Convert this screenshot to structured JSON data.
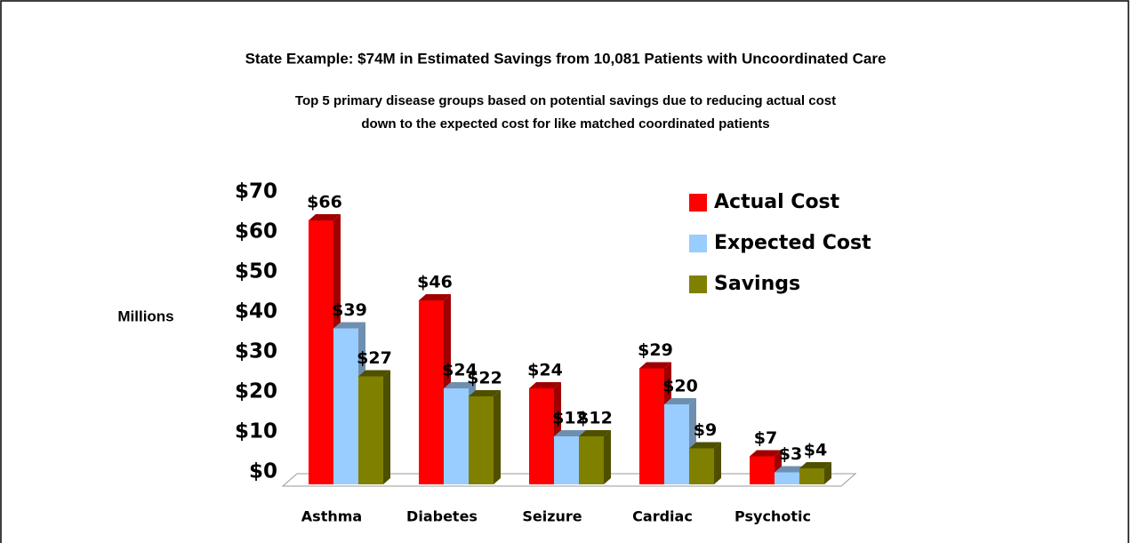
{
  "chart_data": {
    "type": "bar",
    "title": "State Example: $74M in Estimated Savings from 10,081 Patients with Uncoordinated Care",
    "subtitle": [
      "Top 5 primary disease groups based on potential savings due to reducing actual cost",
      "down to the expected cost for like matched coordinated patients"
    ],
    "y_label": "Millions",
    "categories": [
      "Asthma",
      "Diabetes",
      "Seizure",
      "Cardiac",
      "Psychotic"
    ],
    "series": [
      {
        "name": "Actual Cost",
        "color": "#ff0000",
        "side": "#a00000",
        "values": [
          66,
          46,
          24,
          29,
          7
        ],
        "value_labels": [
          "$66",
          "$46",
          "$24",
          "$29",
          "$7"
        ]
      },
      {
        "name": "Expected Cost",
        "color": "#99ccff",
        "side": "#6f8fb0",
        "values": [
          39,
          24,
          12,
          20,
          3
        ],
        "value_labels": [
          "$39",
          "$24",
          "$12",
          "$20",
          "$3"
        ]
      },
      {
        "name": "Savings",
        "color": "#808000",
        "side": "#4f4f00",
        "values": [
          27,
          22,
          12,
          9,
          4
        ],
        "value_labels": [
          "$27",
          "$22",
          "$12",
          "$9",
          "$4"
        ]
      }
    ],
    "ylim": [
      0,
      70
    ],
    "yticks": [
      {
        "value": 0,
        "label": "$0"
      },
      {
        "value": 10,
        "label": "$10"
      },
      {
        "value": 20,
        "label": "$20"
      },
      {
        "value": 30,
        "label": "$30"
      },
      {
        "value": 40,
        "label": "$40"
      },
      {
        "value": 50,
        "label": "$50"
      },
      {
        "value": 60,
        "label": "$60"
      },
      {
        "value": 70,
        "label": "$70"
      }
    ],
    "legend": "upper right"
  }
}
